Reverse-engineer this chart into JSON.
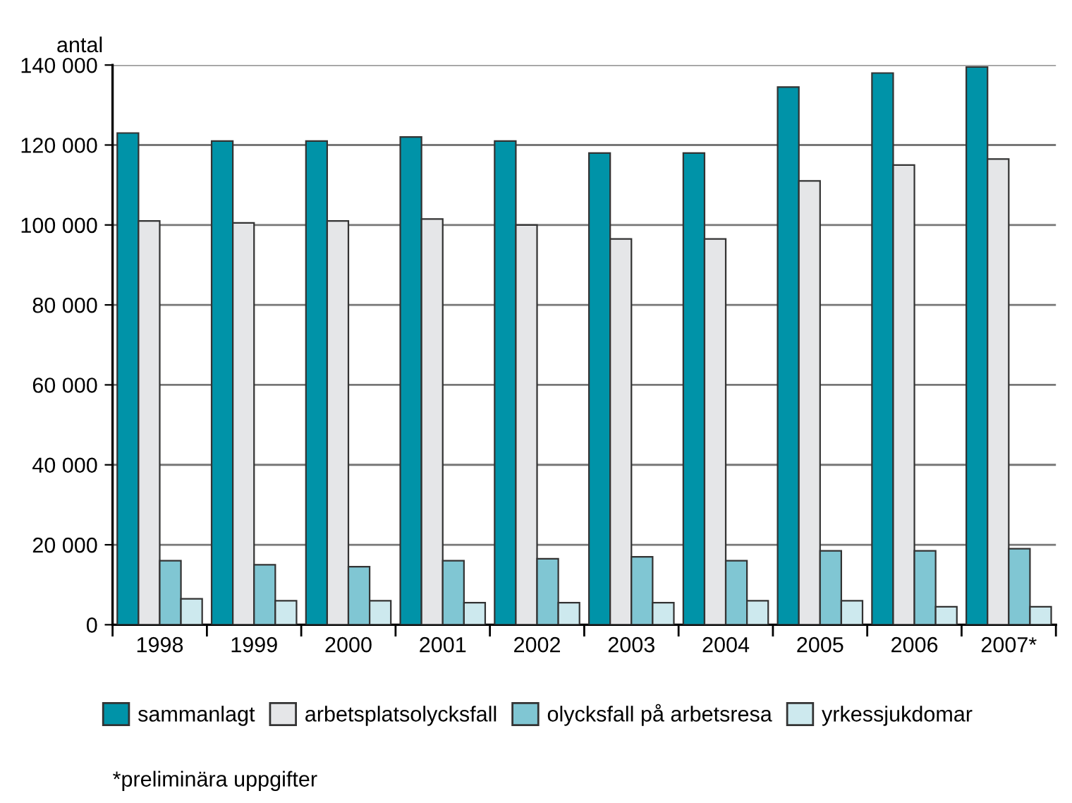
{
  "chart_data": {
    "type": "bar",
    "ylabel": "antal",
    "categories": [
      "1998",
      "1999",
      "2000",
      "2001",
      "2002",
      "2003",
      "2004",
      "2005",
      "2006",
      "2007*"
    ],
    "series": [
      {
        "name": "sammanlagt",
        "color": "#0093a8",
        "values": [
          123000,
          121000,
          121000,
          122000,
          121000,
          118000,
          118000,
          134500,
          138000,
          139500
        ]
      },
      {
        "name": "arbetsplatsolycksfall",
        "color": "#e5e6e8",
        "values": [
          101000,
          100500,
          101000,
          101500,
          100000,
          96500,
          96500,
          111000,
          115000,
          116500
        ]
      },
      {
        "name": "olycksfall på arbetsresa",
        "color": "#80c6d3",
        "values": [
          16000,
          15000,
          14500,
          16000,
          16500,
          17000,
          16000,
          18500,
          18500,
          19000
        ]
      },
      {
        "name": "yrkessjukdomar",
        "color": "#cde9ee",
        "values": [
          6500,
          6000,
          6000,
          5500,
          5500,
          5500,
          6000,
          6000,
          4500,
          4500
        ]
      }
    ],
    "ylim": [
      0,
      140000
    ],
    "yticks": [
      {
        "value": 0,
        "label": "0"
      },
      {
        "value": 20000,
        "label": "20 000"
      },
      {
        "value": 40000,
        "label": "40 000"
      },
      {
        "value": 60000,
        "label": "60 000"
      },
      {
        "value": 80000,
        "label": "80 000"
      },
      {
        "value": 100000,
        "label": "100 000"
      },
      {
        "value": 120000,
        "label": "120 000"
      },
      {
        "value": 140000,
        "label": "140 000"
      }
    ],
    "grid": "y",
    "legend": "bottom",
    "annotations": [
      "*preliminära uppgifter"
    ]
  }
}
